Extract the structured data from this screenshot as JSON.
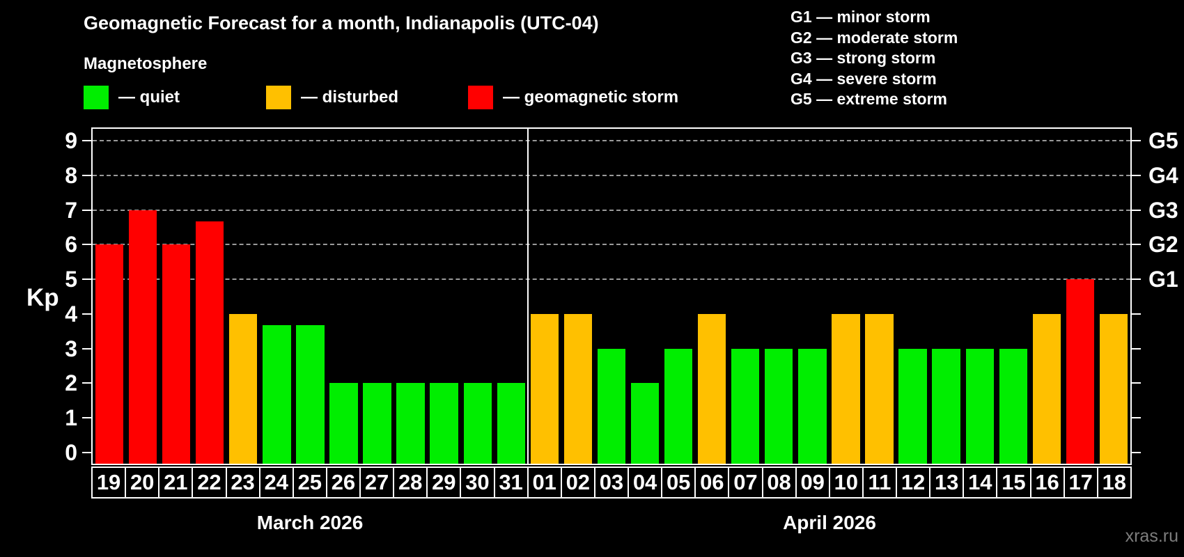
{
  "header": {
    "title": "Geomagnetic Forecast for a month, Indianapolis (UTC-04)",
    "subtitle": "Magnetosphere"
  },
  "legend": {
    "items": [
      {
        "key": "quiet",
        "label": "— quiet"
      },
      {
        "key": "disturbed",
        "label": "— disturbed"
      },
      {
        "key": "storm",
        "label": "— geomagnetic storm"
      }
    ]
  },
  "g_legend": {
    "lines": [
      "G1 — minor storm",
      "G2 — moderate storm",
      "G3 — strong storm",
      "G4 — severe storm",
      "G5 — extreme storm"
    ]
  },
  "colors": {
    "quiet": "#00ee00",
    "disturbed": "#ffc000",
    "storm": "#ff0000",
    "background": "#000000",
    "text": "#ffffff",
    "grid": "#9a9a9a",
    "axis": "#ffffff",
    "watermark": "#7d7d7d"
  },
  "watermark": "xras.ru",
  "chart_data": {
    "type": "bar",
    "title": "Geomagnetic Forecast for a month, Indianapolis (UTC-04)",
    "ylabel": "Kp",
    "ylim": [
      0,
      9.4
    ],
    "y_ticks": [
      0,
      1,
      2,
      3,
      4,
      5,
      6,
      7,
      8,
      9
    ],
    "grid_levels_kp": [
      5,
      6,
      7,
      8,
      9
    ],
    "grid_style": "dashed",
    "legend_position": "top",
    "g_levels": [
      {
        "label": "G1",
        "kp": 5
      },
      {
        "label": "G2",
        "kp": 6
      },
      {
        "label": "G3",
        "kp": 7
      },
      {
        "label": "G4",
        "kp": 8
      },
      {
        "label": "G5",
        "kp": 9
      }
    ],
    "months": [
      {
        "label": "March 2026",
        "bars": [
          {
            "day": "19",
            "kp": 6,
            "status": "storm"
          },
          {
            "day": "20",
            "kp": 7,
            "status": "storm"
          },
          {
            "day": "21",
            "kp": 6,
            "status": "storm"
          },
          {
            "day": "22",
            "kp": 6.67,
            "status": "storm"
          },
          {
            "day": "23",
            "kp": 4,
            "status": "disturbed"
          },
          {
            "day": "24",
            "kp": 3.67,
            "status": "quiet"
          },
          {
            "day": "25",
            "kp": 3.67,
            "status": "quiet"
          },
          {
            "day": "26",
            "kp": 2,
            "status": "quiet"
          },
          {
            "day": "27",
            "kp": 2,
            "status": "quiet"
          },
          {
            "day": "28",
            "kp": 2,
            "status": "quiet"
          },
          {
            "day": "29",
            "kp": 2,
            "status": "quiet"
          },
          {
            "day": "30",
            "kp": 2,
            "status": "quiet"
          },
          {
            "day": "31",
            "kp": 2,
            "status": "quiet"
          }
        ]
      },
      {
        "label": "April 2026",
        "bars": [
          {
            "day": "01",
            "kp": 4,
            "status": "disturbed"
          },
          {
            "day": "02",
            "kp": 4,
            "status": "disturbed"
          },
          {
            "day": "03",
            "kp": 3,
            "status": "quiet"
          },
          {
            "day": "04",
            "kp": 2,
            "status": "quiet"
          },
          {
            "day": "05",
            "kp": 3,
            "status": "quiet"
          },
          {
            "day": "06",
            "kp": 4,
            "status": "disturbed"
          },
          {
            "day": "07",
            "kp": 3,
            "status": "quiet"
          },
          {
            "day": "08",
            "kp": 3,
            "status": "quiet"
          },
          {
            "day": "09",
            "kp": 3,
            "status": "quiet"
          },
          {
            "day": "10",
            "kp": 4,
            "status": "disturbed"
          },
          {
            "day": "11",
            "kp": 4,
            "status": "disturbed"
          },
          {
            "day": "12",
            "kp": 3,
            "status": "quiet"
          },
          {
            "day": "13",
            "kp": 3,
            "status": "quiet"
          },
          {
            "day": "14",
            "kp": 3,
            "status": "quiet"
          },
          {
            "day": "15",
            "kp": 3,
            "status": "quiet"
          },
          {
            "day": "16",
            "kp": 4,
            "status": "disturbed"
          },
          {
            "day": "17",
            "kp": 5,
            "status": "storm"
          },
          {
            "day": "18",
            "kp": 4,
            "status": "disturbed"
          }
        ]
      }
    ]
  }
}
